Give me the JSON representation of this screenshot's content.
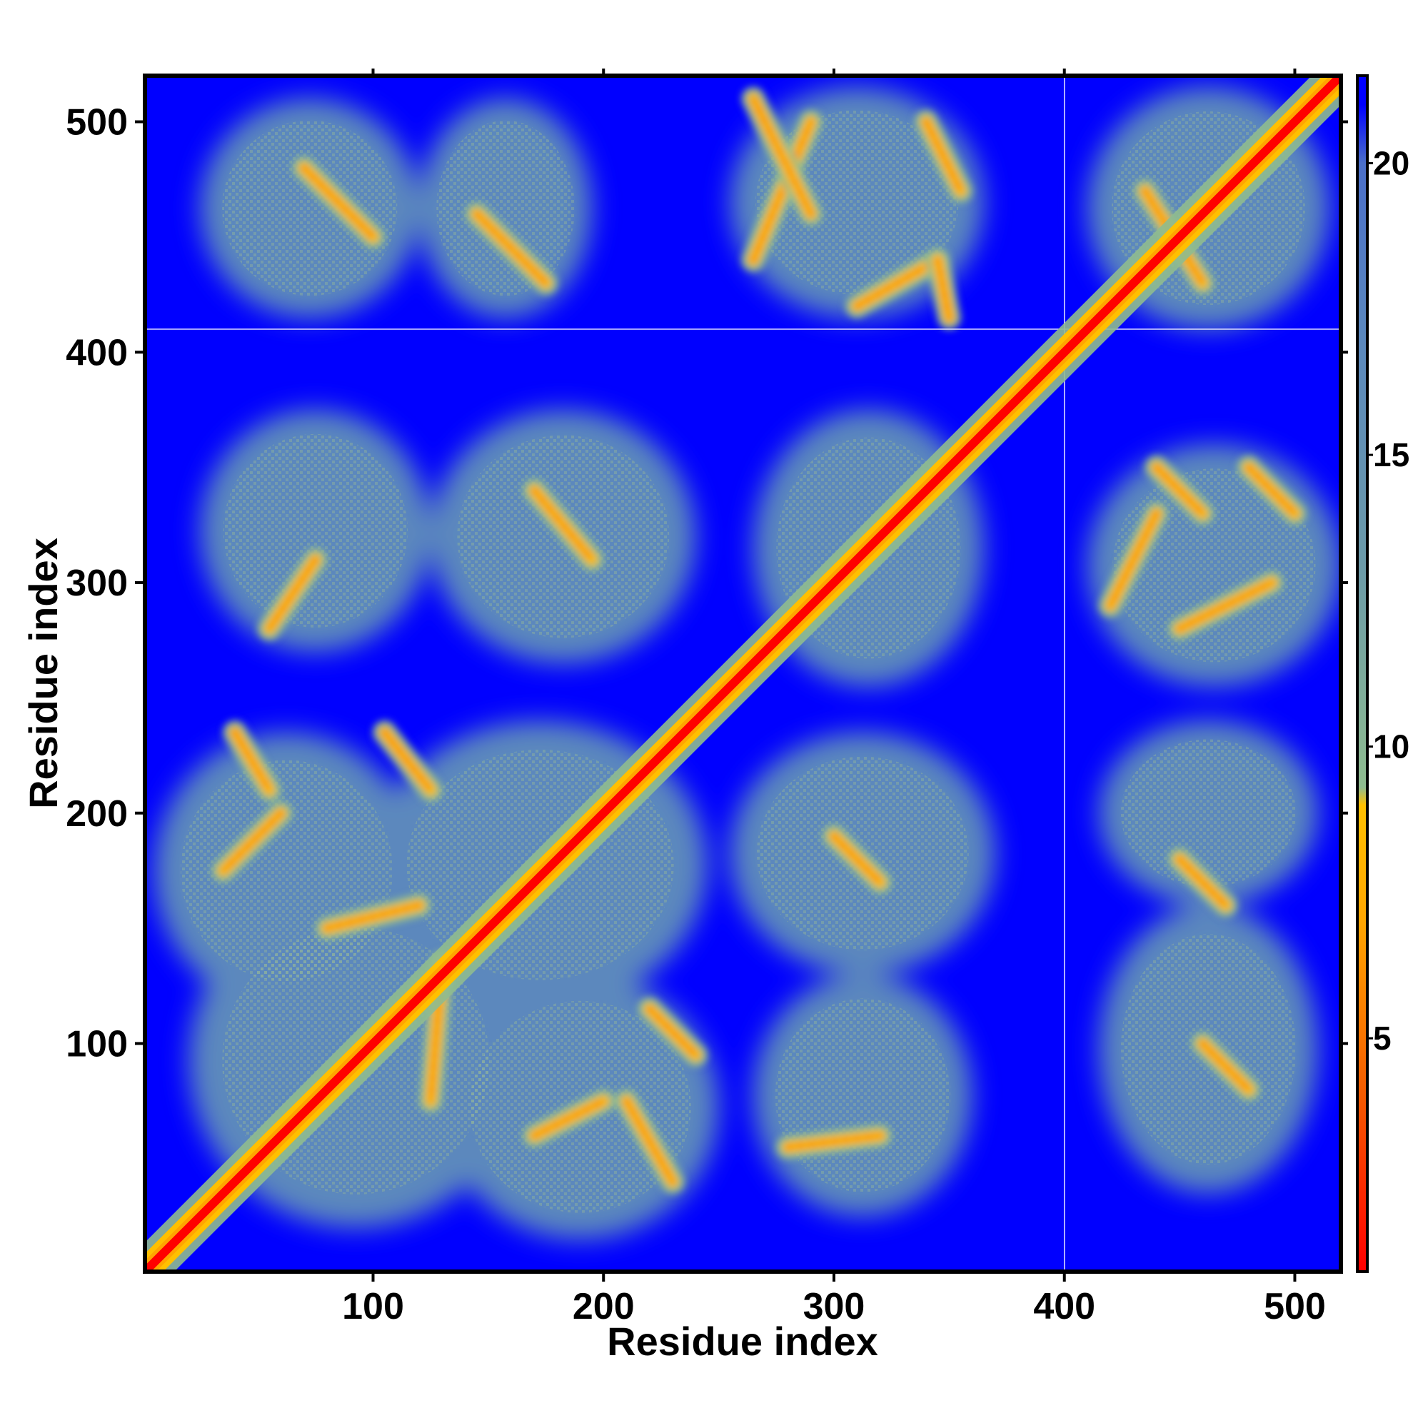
{
  "chart_data": {
    "type": "heatmap",
    "title": "",
    "xlabel": "Residue index",
    "ylabel": "Residue index",
    "xlim": [
      1,
      520
    ],
    "ylim": [
      1,
      520
    ],
    "x_ticks": [
      100,
      200,
      300,
      400,
      500
    ],
    "x_tick_labels": [
      "100",
      "200",
      "300",
      "400",
      "500"
    ],
    "y_ticks": [
      100,
      200,
      300,
      400,
      500
    ],
    "y_tick_labels": [
      "100",
      "200",
      "300",
      "400",
      "500"
    ],
    "colorbar": {
      "range": [
        1,
        21.5
      ],
      "ticks": [
        5,
        10,
        15,
        20
      ],
      "tick_labels": [
        "5",
        "10",
        "15",
        "20"
      ],
      "colors": [
        {
          "value": 1,
          "color": "#ff0000"
        },
        {
          "value": 4,
          "color": "#f55a00"
        },
        {
          "value": 7,
          "color": "#ffa500"
        },
        {
          "value": 9,
          "color": "#ffc000"
        },
        {
          "value": 9.3,
          "color": "#8fbc8f"
        },
        {
          "value": 13,
          "color": "#6c9ba8"
        },
        {
          "value": 17,
          "color": "#5b88bd"
        },
        {
          "value": 20,
          "color": "#4b6fc9"
        },
        {
          "value": 21,
          "color": "#0000ff"
        }
      ]
    },
    "background_color": "#0000ff",
    "domain_boundaries": [
      400,
      410
    ],
    "diagonal": {
      "from": 1,
      "to": 520,
      "color": "#ff0000"
    },
    "contact_regions": [
      {
        "x": [
          25,
          120
        ],
        "y": [
          415,
          510
        ]
      },
      {
        "x": [
          120,
          195
        ],
        "y": [
          415,
          510
        ]
      },
      {
        "x": [
          255,
          365
        ],
        "y": [
          415,
          515
        ]
      },
      {
        "x": [
          410,
          515
        ],
        "y": [
          410,
          515
        ]
      },
      {
        "x": [
          25,
          125
        ],
        "y": [
          270,
          375
        ]
      },
      {
        "x": [
          125,
          240
        ],
        "y": [
          265,
          375
        ]
      },
      {
        "x": [
          265,
          365
        ],
        "y": [
          255,
          375
        ]
      },
      {
        "x": [
          410,
          520
        ],
        "y": [
          255,
          360
        ]
      },
      {
        "x": [
          5,
          120
        ],
        "y": [
          115,
          235
        ]
      },
      {
        "x": [
          100,
          245
        ],
        "y": [
          115,
          240
        ]
      },
      {
        "x": [
          20,
          165
        ],
        "y": [
          20,
          165
        ]
      },
      {
        "x": [
          130,
          250
        ],
        "y": [
          15,
          130
        ]
      },
      {
        "x": [
          255,
          370
        ],
        "y": [
          130,
          235
        ]
      },
      {
        "x": [
          265,
          360
        ],
        "y": [
          25,
          130
        ]
      },
      {
        "x": [
          415,
          510
        ],
        "y": [
          160,
          240
        ]
      },
      {
        "x": [
          415,
          510
        ],
        "y": [
          35,
          160
        ]
      }
    ],
    "bands": [
      {
        "p1": [
          70,
          480
        ],
        "p2": [
          100,
          450
        ]
      },
      {
        "p1": [
          145,
          460
        ],
        "p2": [
          175,
          430
        ]
      },
      {
        "p1": [
          265,
          440
        ],
        "p2": [
          290,
          500
        ]
      },
      {
        "p1": [
          290,
          460
        ],
        "p2": [
          265,
          510
        ]
      },
      {
        "p1": [
          310,
          420
        ],
        "p2": [
          345,
          440
        ]
      },
      {
        "p1": [
          345,
          440
        ],
        "p2": [
          350,
          415
        ]
      },
      {
        "p1": [
          340,
          500
        ],
        "p2": [
          355,
          470
        ]
      },
      {
        "p1": [
          170,
          340
        ],
        "p2": [
          195,
          310
        ]
      },
      {
        "p1": [
          75,
          310
        ],
        "p2": [
          55,
          280
        ]
      },
      {
        "p1": [
          40,
          235
        ],
        "p2": [
          55,
          210
        ]
      },
      {
        "p1": [
          60,
          200
        ],
        "p2": [
          35,
          175
        ]
      },
      {
        "p1": [
          105,
          235
        ],
        "p2": [
          125,
          210
        ]
      },
      {
        "p1": [
          80,
          150
        ],
        "p2": [
          120,
          160
        ]
      },
      {
        "p1": [
          130,
          135
        ],
        "p2": [
          125,
          75
        ]
      },
      {
        "p1": [
          220,
          115
        ],
        "p2": [
          240,
          95
        ]
      },
      {
        "p1": [
          170,
          60
        ],
        "p2": [
          200,
          75
        ]
      },
      {
        "p1": [
          210,
          75
        ],
        "p2": [
          230,
          40
        ]
      },
      {
        "p1": [
          300,
          190
        ],
        "p2": [
          320,
          170
        ]
      },
      {
        "p1": [
          280,
          55
        ],
        "p2": [
          320,
          60
        ]
      },
      {
        "p1": [
          440,
          350
        ],
        "p2": [
          460,
          330
        ]
      },
      {
        "p1": [
          440,
          330
        ],
        "p2": [
          420,
          290
        ]
      },
      {
        "p1": [
          450,
          280
        ],
        "p2": [
          490,
          300
        ]
      },
      {
        "p1": [
          480,
          350
        ],
        "p2": [
          500,
          330
        ]
      },
      {
        "p1": [
          450,
          180
        ],
        "p2": [
          470,
          160
        ]
      },
      {
        "p1": [
          460,
          100
        ],
        "p2": [
          480,
          80
        ]
      },
      {
        "p1": [
          435,
          470
        ],
        "p2": [
          460,
          430
        ]
      }
    ]
  }
}
